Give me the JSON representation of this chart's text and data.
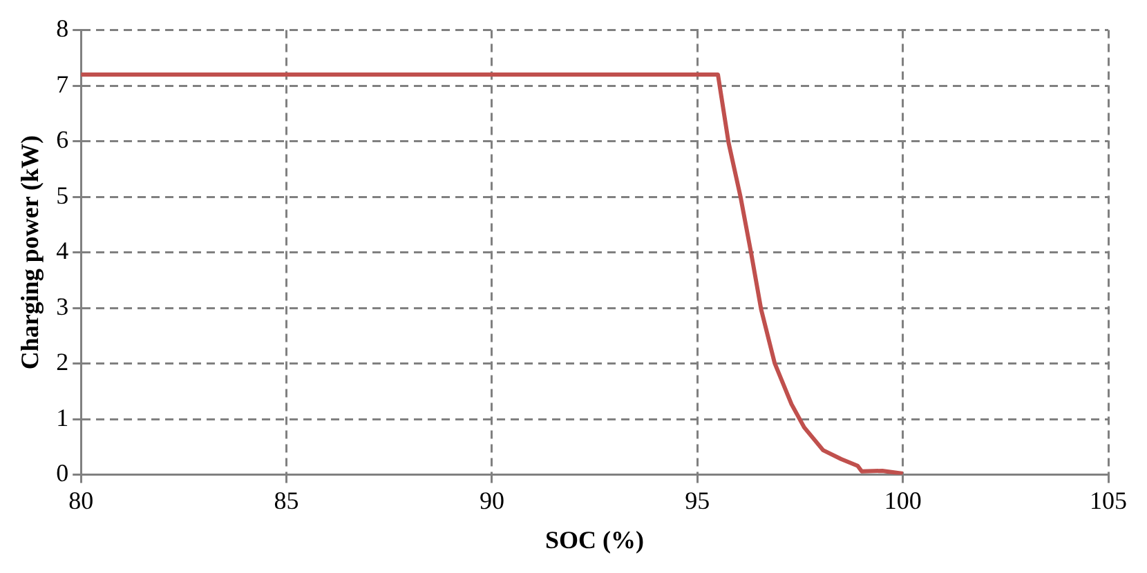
{
  "chart_data": {
    "type": "line",
    "xlabel": "SOC (%)",
    "ylabel": "Charging power (kW)",
    "series": [
      {
        "color": "#c0504d",
        "x": [
          80,
          95.5,
          95.76,
          96.05,
          96.31,
          96.55,
          96.88,
          97.29,
          97.6,
          98.06,
          98.5,
          98.9,
          99.0,
          99.5,
          100
        ],
        "values": [
          7.2,
          7.2,
          5.97,
          5.0,
          3.98,
          2.98,
          2.01,
          1.27,
          0.85,
          0.44,
          0.28,
          0.16,
          0.06,
          0.07,
          0.02
        ]
      }
    ],
    "xlim": [
      80,
      105
    ],
    "xticks": [
      80,
      85,
      90,
      95,
      100,
      105
    ],
    "ylim": [
      0,
      8
    ],
    "yticks": [
      0,
      1,
      2,
      3,
      4,
      5,
      6,
      7,
      8
    ],
    "grid": true,
    "legend": false,
    "marker": "none",
    "line_style": "solid"
  }
}
